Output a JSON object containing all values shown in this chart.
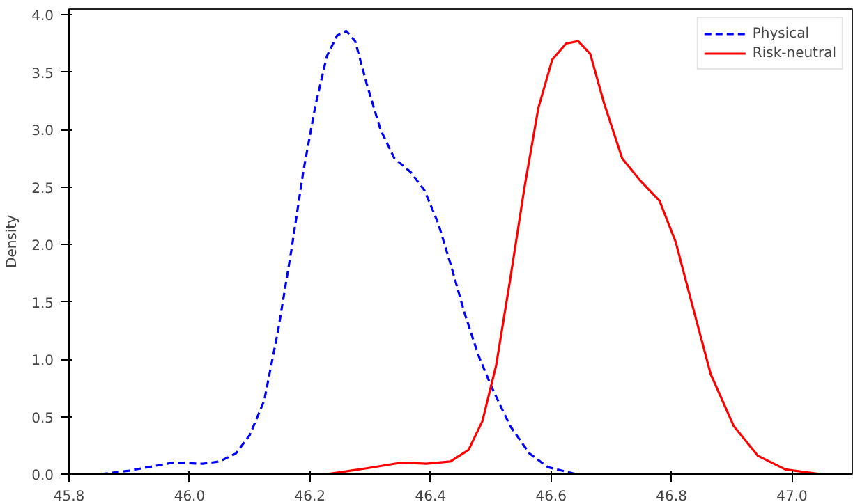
{
  "chart_data": {
    "type": "line",
    "ylabel": "Density",
    "xlim": [
      45.8,
      47.1
    ],
    "ylim": [
      0,
      4.05
    ],
    "xticks": [
      45.8,
      {
        "value": 46,
        "label": "46.0"
      },
      46.2,
      46.4,
      46.6,
      46.8,
      {
        "value": 47,
        "label": "47.0"
      }
    ],
    "yticks": [
      {
        "value": 0,
        "label": "0.0"
      },
      0.5,
      {
        "value": 1,
        "label": "1.0"
      },
      1.5,
      {
        "value": 2,
        "label": "2.0"
      },
      2.5,
      {
        "value": 3,
        "label": "3.0"
      },
      3.5,
      {
        "value": 4,
        "label": "4.0"
      }
    ],
    "grid": false,
    "legend": "top right",
    "marker": "none",
    "series": [
      {
        "name": "Physical",
        "color": "#0000ff",
        "line_style": "dashed",
        "x": [
          45.853,
          45.9,
          45.973,
          46.022,
          46.05,
          46.077,
          46.1,
          46.124,
          46.147,
          46.17,
          46.189,
          46.209,
          46.228,
          46.245,
          46.26,
          46.275,
          46.294,
          46.317,
          46.34,
          46.367,
          46.39,
          46.413,
          46.436,
          46.456,
          46.479,
          46.502,
          46.532,
          46.564,
          46.595,
          46.641
        ],
        "values": [
          0,
          0.03,
          0.1,
          0.09,
          0.11,
          0.18,
          0.34,
          0.64,
          1.25,
          1.98,
          2.64,
          3.21,
          3.64,
          3.82,
          3.86,
          3.77,
          3.4,
          3.0,
          2.75,
          2.63,
          2.47,
          2.18,
          1.78,
          1.41,
          1.04,
          0.75,
          0.42,
          0.18,
          0.06,
          0
        ]
      },
      {
        "name": "Risk-neutral",
        "color": "#ff0000",
        "line_style": "solid",
        "x": [
          46.228,
          46.294,
          46.352,
          46.393,
          46.433,
          46.463,
          46.486,
          46.509,
          46.532,
          46.556,
          46.579,
          46.602,
          46.625,
          46.645,
          46.665,
          46.688,
          46.718,
          46.749,
          46.78,
          46.807,
          46.834,
          46.865,
          46.903,
          46.943,
          46.989,
          47.047
        ],
        "values": [
          0,
          0.05,
          0.1,
          0.09,
          0.11,
          0.21,
          0.46,
          0.95,
          1.69,
          2.5,
          3.19,
          3.61,
          3.75,
          3.77,
          3.66,
          3.23,
          2.75,
          2.55,
          2.38,
          2.02,
          1.48,
          0.87,
          0.42,
          0.16,
          0.04,
          0
        ]
      }
    ]
  }
}
